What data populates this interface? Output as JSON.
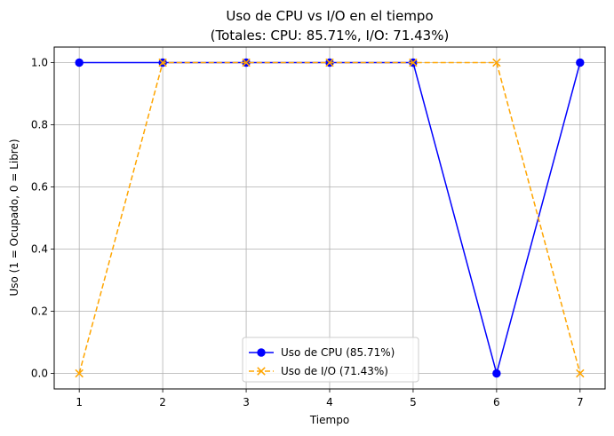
{
  "chart_data": {
    "type": "line",
    "title": "Uso de CPU vs I/O en el tiempo",
    "subtitle": "(Totales: CPU: 85.71%, I/O: 71.43%)",
    "xlabel": "Tiempo",
    "ylabel": "Uso (1 = Ocupado, 0 = Libre)",
    "x": [
      1,
      2,
      3,
      4,
      5,
      6,
      7
    ],
    "xticks": [
      "1",
      "2",
      "3",
      "4",
      "5",
      "6",
      "7"
    ],
    "yticks": [
      "0.0",
      "0.2",
      "0.4",
      "0.6",
      "0.8",
      "1.0"
    ],
    "ytick_values": [
      0,
      0.2,
      0.4,
      0.6,
      0.8,
      1.0
    ],
    "xlim": [
      0.7,
      7.3
    ],
    "ylim": [
      -0.05,
      1.05
    ],
    "grid": true,
    "legend_position": "bottom-center",
    "series": [
      {
        "name": "Uso de CPU (85.71%)",
        "values": [
          1,
          1,
          1,
          1,
          1,
          0,
          1
        ],
        "color": "#0000ff",
        "line_style": "solid",
        "marker": "circle"
      },
      {
        "name": "Uso de I/O (71.43%)",
        "values": [
          0,
          1,
          1,
          1,
          1,
          1,
          0
        ],
        "color": "#ffa500",
        "line_style": "dashed",
        "marker": "x"
      }
    ]
  }
}
